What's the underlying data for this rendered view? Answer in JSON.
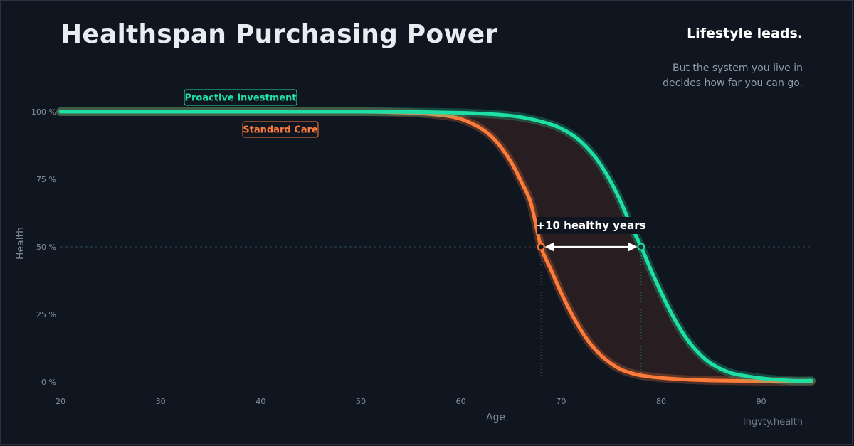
{
  "header": {
    "title": "Healthspan Purchasing Power",
    "lead": "Lifestyle leads.",
    "subtitle_line1": "But the system you live in",
    "subtitle_line2": "decides how far you can go."
  },
  "footer": {
    "source": "lngvty.health"
  },
  "colors": {
    "background": "#0f1620",
    "proactive": "#1fe0a4",
    "standard": "#ff7b3a",
    "gap_fill": "#2a1f22",
    "arrow": "#ffffff"
  },
  "chart_data": {
    "type": "line",
    "xlabel": "Age",
    "ylabel": "Health",
    "xlim": [
      20,
      95
    ],
    "ylim": [
      0,
      100
    ],
    "x_ticks": [
      20,
      30,
      40,
      50,
      60,
      70,
      80,
      90
    ],
    "x_tick_labels": [
      "20",
      "30",
      "40",
      "50",
      "60",
      "70",
      "80",
      "90"
    ],
    "y_ticks": [
      0,
      25,
      50,
      75,
      100
    ],
    "y_tick_labels": [
      "0 %",
      "25 %",
      "50 %",
      "75 %",
      "100 %"
    ],
    "reference_line_y": 50,
    "series": [
      {
        "name": "Proactive Investment",
        "color": "#1fe0a4",
        "x": [
          20,
          30,
          40,
          50,
          55,
          60,
          63,
          65,
          67,
          69,
          70,
          71,
          72,
          73,
          74,
          75,
          76,
          77,
          78,
          79,
          80,
          81,
          82,
          83,
          84,
          85,
          87,
          90,
          93,
          95
        ],
        "values": [
          100,
          100,
          100,
          100,
          99.9,
          99.6,
          99.1,
          98.5,
          97.3,
          95.3,
          93.8,
          91.7,
          88.9,
          85.1,
          80.1,
          73.9,
          66.4,
          57.7,
          50.0,
          41.3,
          33.1,
          25.6,
          19.1,
          13.8,
          9.8,
          6.8,
          3.3,
          1.4,
          0.5,
          0.5
        ]
      },
      {
        "name": "Standard Care",
        "color": "#ff7b3a",
        "x": [
          20,
          30,
          40,
          50,
          53,
          55,
          57,
          59,
          60,
          61,
          62,
          63,
          64,
          65,
          66,
          67,
          68,
          69,
          70,
          71,
          72,
          73,
          74,
          75,
          76,
          77,
          78,
          80,
          83,
          86,
          90,
          95
        ],
        "values": [
          100,
          100,
          100,
          100,
          99.8,
          99.6,
          99.1,
          98.2,
          97.3,
          95.8,
          93.8,
          91.0,
          86.9,
          81.4,
          74.3,
          66.0,
          50.0,
          41.5,
          33.1,
          25.6,
          19.1,
          13.8,
          9.8,
          6.8,
          4.6,
          3.3,
          2.4,
          1.5,
          0.8,
          0.5,
          0.3,
          0.2
        ]
      }
    ],
    "series_labels": [
      {
        "text": "Proactive Investment",
        "series": 0
      },
      {
        "text": "Standard Care",
        "series": 1
      }
    ],
    "annotation": {
      "text": "+10 healthy years",
      "from_x": 68,
      "to_x": 78,
      "y": 50
    },
    "shaded_gap": true,
    "grid": false
  }
}
